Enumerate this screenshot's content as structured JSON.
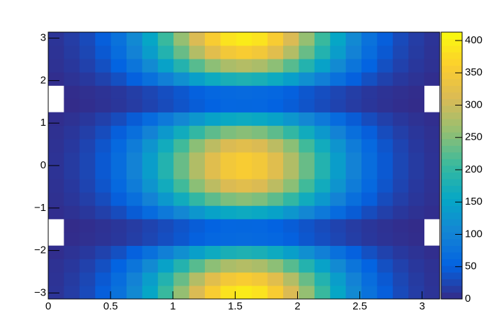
{
  "chart_data": {
    "type": "heatmap",
    "xlim": [
      0,
      3.1416
    ],
    "ylim": [
      -3.1416,
      3.1416
    ],
    "zlim": [
      0,
      413
    ],
    "xticks": [
      0,
      0.5,
      1,
      1.5,
      2,
      2.5,
      3
    ],
    "yticks": [
      {
        "value": -3,
        "label": "−3"
      },
      {
        "value": -2,
        "label": "−2"
      },
      {
        "value": -1,
        "label": "−1"
      },
      0,
      1,
      2,
      3
    ],
    "zticks": [
      0,
      50,
      100,
      150,
      200,
      250,
      300,
      350,
      400
    ],
    "palette": [
      "#352a87",
      "#0363e1",
      "#1485d4",
      "#06a7c6",
      "#38b99e",
      "#92bf73",
      "#d9ba56",
      "#fcce2e",
      "#f9fb0e"
    ],
    "z": [
      [
        9,
        17,
        29,
        48,
        74,
        110,
        154,
        206,
        260,
        312,
        356,
        385,
        395,
        385,
        356,
        312,
        260,
        206,
        154,
        110,
        74,
        48,
        29,
        17,
        9
      ],
      [
        8,
        15,
        26,
        43,
        67,
        99,
        139,
        185,
        234,
        282,
        321,
        347,
        356,
        347,
        321,
        282,
        234,
        185,
        139,
        99,
        67,
        43,
        26,
        15,
        8
      ],
      [
        7,
        12,
        21,
        34,
        53,
        79,
        111,
        147,
        186,
        224,
        255,
        276,
        283,
        276,
        255,
        224,
        186,
        147,
        111,
        79,
        53,
        34,
        21,
        12,
        7
      ],
      [
        4,
        8,
        13,
        22,
        34,
        50,
        71,
        94,
        119,
        143,
        163,
        176,
        181,
        176,
        163,
        143,
        119,
        94,
        71,
        50,
        34,
        22,
        13,
        8,
        4
      ],
      [
        0,
        3,
        5,
        8,
        12,
        18,
        25,
        33,
        41,
        50,
        57,
        61,
        63,
        61,
        57,
        50,
        41,
        33,
        25,
        18,
        12,
        8,
        5,
        3,
        0
      ],
      [
        0,
        2,
        4,
        7,
        11,
        16,
        23,
        30,
        38,
        46,
        52,
        57,
        58,
        57,
        52,
        46,
        38,
        30,
        23,
        16,
        11,
        7,
        4,
        2,
        0
      ],
      [
        4,
        7,
        12,
        20,
        31,
        45,
        64,
        85,
        107,
        129,
        147,
        159,
        163,
        159,
        147,
        129,
        107,
        85,
        64,
        45,
        31,
        20,
        12,
        7,
        4
      ],
      [
        6,
        11,
        19,
        31,
        48,
        70,
        99,
        132,
        166,
        200,
        228,
        246,
        253,
        246,
        228,
        200,
        166,
        132,
        99,
        70,
        48,
        31,
        19,
        11,
        6
      ],
      [
        7,
        13,
        24,
        39,
        60,
        89,
        126,
        167,
        211,
        254,
        289,
        313,
        321,
        313,
        289,
        254,
        211,
        167,
        126,
        89,
        60,
        39,
        24,
        13,
        7
      ],
      [
        8,
        15,
        26,
        43,
        67,
        99,
        139,
        185,
        234,
        281,
        320,
        346,
        355,
        346,
        320,
        281,
        234,
        185,
        139,
        99,
        67,
        43,
        26,
        15,
        8
      ],
      [
        8,
        15,
        26,
        43,
        67,
        99,
        139,
        185,
        234,
        281,
        320,
        346,
        355,
        346,
        320,
        281,
        234,
        185,
        139,
        99,
        67,
        43,
        26,
        15,
        8
      ],
      [
        7,
        13,
        24,
        39,
        60,
        89,
        126,
        167,
        211,
        254,
        289,
        313,
        321,
        313,
        289,
        254,
        211,
        167,
        126,
        89,
        60,
        39,
        24,
        13,
        7
      ],
      [
        6,
        11,
        19,
        31,
        48,
        70,
        99,
        132,
        166,
        200,
        228,
        246,
        253,
        246,
        228,
        200,
        166,
        132,
        99,
        70,
        48,
        31,
        19,
        11,
        6
      ],
      [
        4,
        7,
        12,
        20,
        31,
        45,
        64,
        85,
        107,
        129,
        147,
        159,
        163,
        159,
        147,
        129,
        107,
        85,
        64,
        45,
        31,
        20,
        12,
        7,
        4
      ],
      [
        0,
        2,
        4,
        7,
        11,
        16,
        23,
        30,
        38,
        46,
        52,
        57,
        58,
        57,
        52,
        46,
        38,
        30,
        23,
        16,
        11,
        7,
        4,
        2,
        0
      ],
      [
        0,
        3,
        5,
        8,
        12,
        18,
        25,
        33,
        41,
        50,
        57,
        61,
        63,
        61,
        57,
        50,
        41,
        33,
        25,
        18,
        12,
        8,
        5,
        3,
        0
      ],
      [
        4,
        8,
        13,
        22,
        34,
        50,
        71,
        94,
        119,
        143,
        163,
        176,
        181,
        176,
        163,
        143,
        119,
        94,
        71,
        50,
        34,
        22,
        13,
        8,
        4
      ],
      [
        7,
        12,
        21,
        34,
        53,
        79,
        111,
        147,
        186,
        224,
        255,
        276,
        283,
        276,
        255,
        224,
        186,
        147,
        111,
        79,
        53,
        34,
        21,
        12,
        7
      ],
      [
        8,
        15,
        26,
        43,
        67,
        99,
        139,
        185,
        234,
        282,
        321,
        347,
        356,
        347,
        321,
        282,
        234,
        185,
        139,
        99,
        67,
        43,
        26,
        15,
        8
      ],
      [
        9,
        17,
        29,
        48,
        74,
        110,
        154,
        206,
        260,
        312,
        356,
        385,
        395,
        385,
        356,
        312,
        260,
        206,
        154,
        110,
        74,
        48,
        29,
        17,
        9
      ]
    ]
  }
}
